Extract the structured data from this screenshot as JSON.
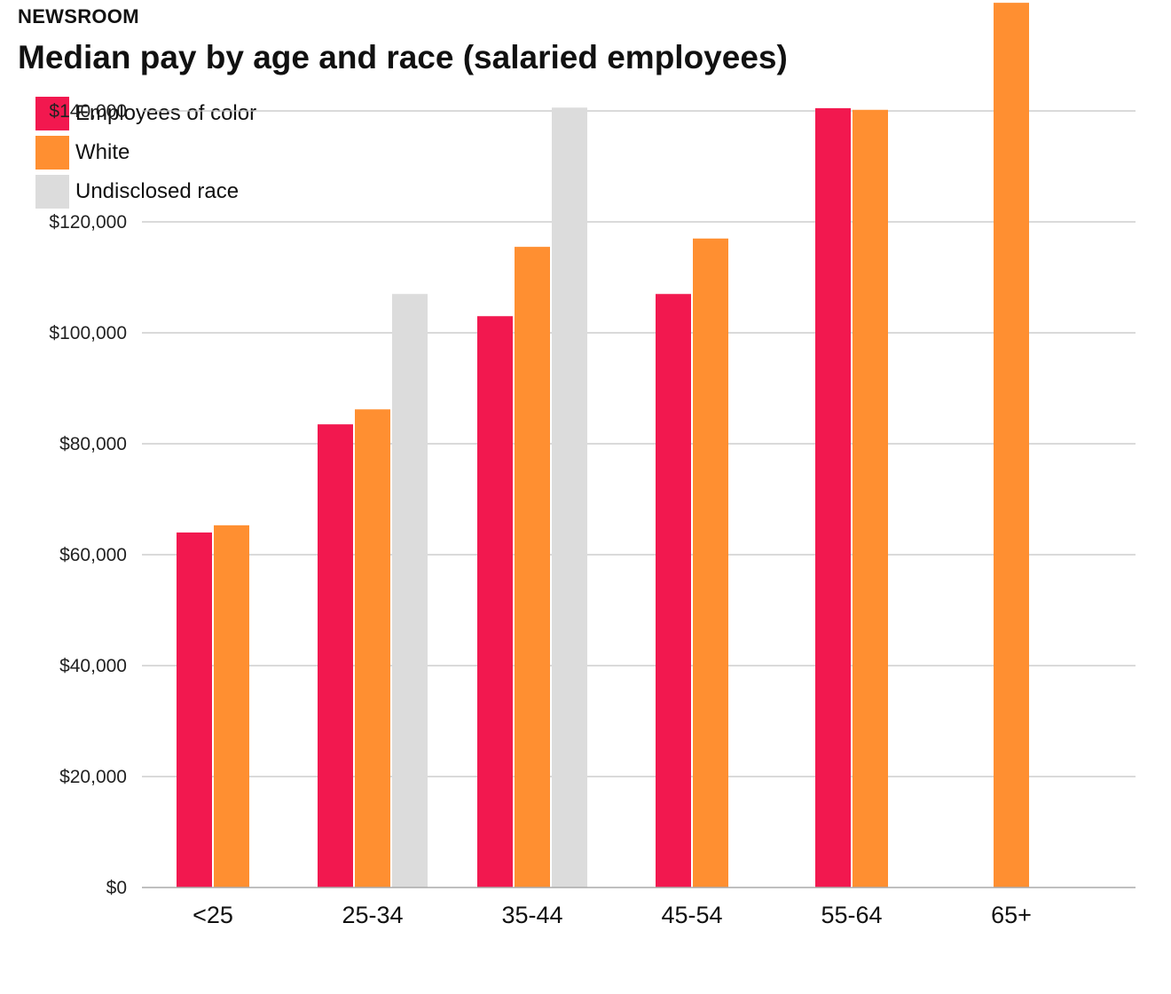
{
  "header": {
    "kicker": "NEWSROOM",
    "title": "Median pay by age and race (salaried employees)"
  },
  "chart_data": {
    "type": "bar",
    "title": "Median pay by age and race (salaried employees)",
    "xlabel": "",
    "ylabel": "",
    "categories": [
      "<25",
      "25-34",
      "35-44",
      "45-54",
      "55-64",
      "65+"
    ],
    "series": [
      {
        "name": "Employees of color",
        "color": "#f2184f",
        "values": [
          64000,
          83500,
          103000,
          107000,
          140500,
          null
        ]
      },
      {
        "name": "White",
        "color": "#ff8f31",
        "values": [
          65300,
          86200,
          115500,
          117000,
          140200,
          159500
        ]
      },
      {
        "name": "Undisclosed race",
        "color": "#dcdcdc",
        "values": [
          null,
          107000,
          140600,
          null,
          null,
          null
        ]
      }
    ],
    "ylim": [
      0,
      160000
    ],
    "yticks": [
      0,
      20000,
      40000,
      60000,
      80000,
      100000,
      120000,
      140000
    ],
    "ytick_labels": [
      "$0",
      "$20,000",
      "$40,000",
      "$60,000",
      "$80,000",
      "$100,000",
      "$120,000",
      "$140,000"
    ],
    "grid": true,
    "legend_position": "top-left"
  }
}
